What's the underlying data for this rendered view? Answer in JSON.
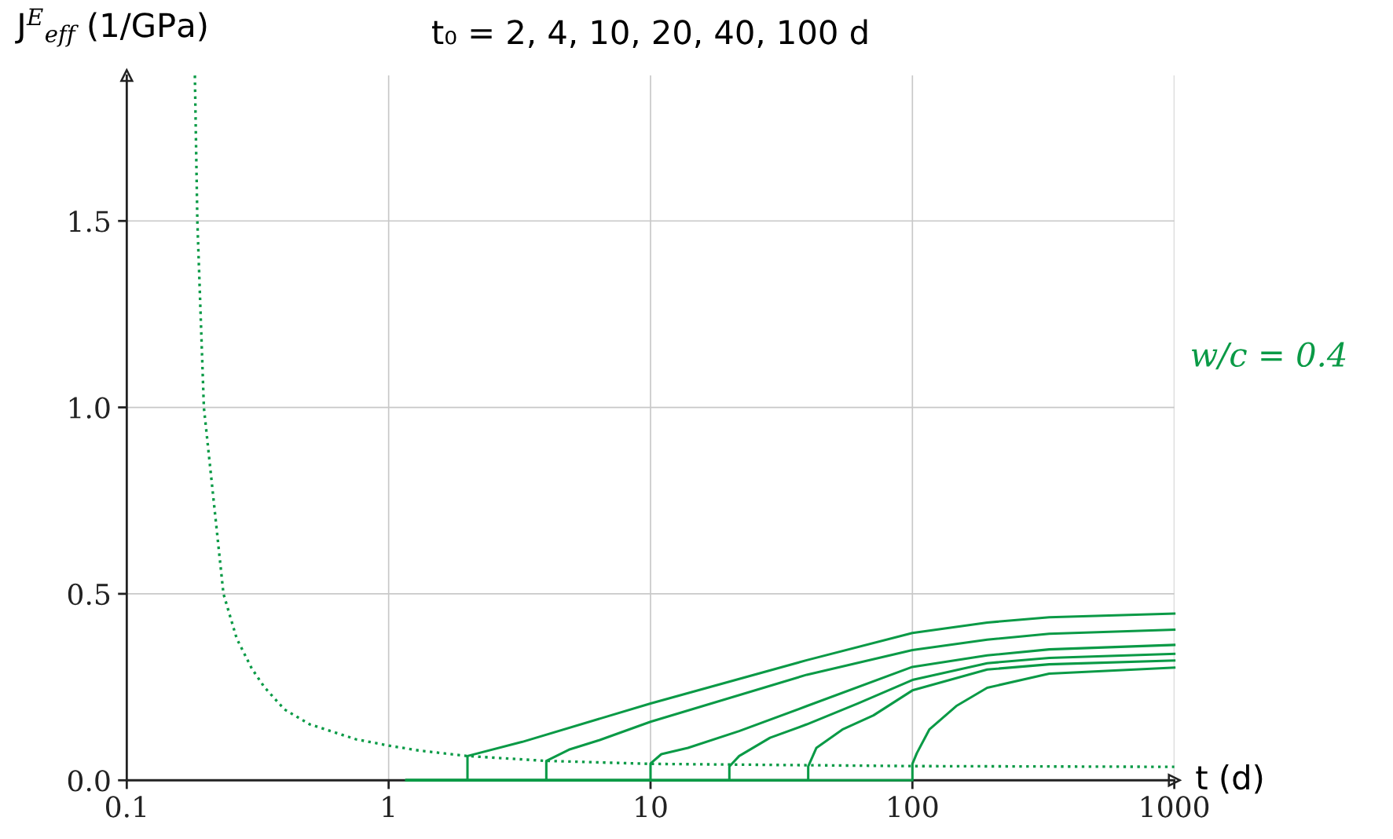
{
  "chart_data": {
    "type": "line",
    "title": "t₀ = 2, 4, 10, 20, 40, 100 d",
    "xlabel": "t (d)",
    "ylabel": "J$^{E}$$_{eff}$ (1/GPa)",
    "annotations": [
      "w/c = 0.4"
    ],
    "log": "x",
    "xlim": [
      0.1,
      1000
    ],
    "xticks": [
      0.1,
      1,
      10,
      100,
      1000
    ],
    "ylim": [
      0,
      1.89
    ],
    "yticks": [
      {
        "value": 0,
        "label": "0.0"
      },
      0.5,
      {
        "value": 1,
        "label": "1.0"
      },
      1.5
    ],
    "grid": true,
    "legend": false,
    "marker": "none",
    "series": [
      {
        "color": "#0a9a46",
        "line_style": "dotted",
        "x": [
          0.182,
          0.186,
          0.197,
          0.234,
          0.263,
          0.3,
          0.335,
          0.4,
          0.5,
          0.75,
          1,
          1.3,
          2,
          4,
          10,
          100,
          1000
        ],
        "values": [
          1.89,
          1.5,
          1.0,
          0.5,
          0.38,
          0.3,
          0.25,
          0.19,
          0.15,
          0.11,
          0.093,
          0.08,
          0.065,
          0.052,
          0.044,
          0.038,
          0.036
        ]
      },
      {
        "color": "#0a9a46",
        "line_style": "solid",
        "x": [
          1.17,
          2,
          2,
          3.24,
          10,
          39.5,
          100,
          193,
          333,
          1000
        ],
        "values": [
          0,
          0,
          0.065,
          0.103,
          0.206,
          0.322,
          0.395,
          0.423,
          0.437,
          0.447
        ]
      },
      {
        "color": "#0a9a46",
        "line_style": "solid",
        "x": [
          1.17,
          4,
          4,
          4.88,
          6.4,
          10,
          39.5,
          100,
          193,
          333,
          1000
        ],
        "values": [
          0,
          0,
          0.052,
          0.082,
          0.108,
          0.157,
          0.283,
          0.349,
          0.377,
          0.393,
          0.404
        ]
      },
      {
        "color": "#0a9a46",
        "line_style": "solid",
        "x": [
          1.17,
          10,
          10,
          11,
          13.9,
          21.8,
          39.5,
          100,
          193,
          333,
          1000
        ],
        "values": [
          0,
          0,
          0.045,
          0.07,
          0.087,
          0.132,
          0.199,
          0.304,
          0.335,
          0.351,
          0.363
        ]
      },
      {
        "color": "#0a9a46",
        "line_style": "solid",
        "x": [
          1.17,
          20,
          20,
          21.8,
          28.6,
          39.5,
          62,
          100,
          193,
          333,
          1000
        ],
        "values": [
          0,
          0,
          0.037,
          0.065,
          0.114,
          0.15,
          0.206,
          0.269,
          0.314,
          0.328,
          0.339
        ]
      },
      {
        "color": "#0a9a46",
        "line_style": "solid",
        "x": [
          1.17,
          40,
          40,
          43,
          54,
          71,
          100,
          193,
          333,
          1000
        ],
        "values": [
          0,
          0,
          0.037,
          0.087,
          0.136,
          0.174,
          0.241,
          0.297,
          0.311,
          0.321
        ]
      },
      {
        "color": "#0a9a46",
        "line_style": "solid",
        "x": [
          1.17,
          100,
          100,
          104,
          116,
          147,
          193,
          333,
          1000
        ],
        "values": [
          0,
          0,
          0.044,
          0.073,
          0.136,
          0.199,
          0.248,
          0.286,
          0.302
        ]
      }
    ]
  }
}
